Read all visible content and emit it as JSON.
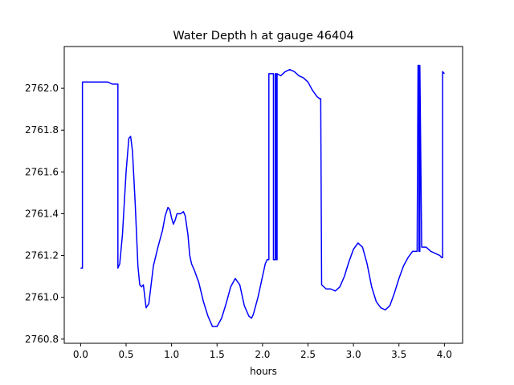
{
  "chart_data": {
    "type": "line",
    "title": "Water Depth h at gauge 46404",
    "xlabel": "hours",
    "ylabel": "",
    "xlim": [
      -0.18,
      4.2
    ],
    "ylim": [
      2760.78,
      2762.2
    ],
    "grid": false,
    "xticks": [
      0.0,
      0.5,
      1.0,
      1.5,
      2.0,
      2.5,
      3.0,
      3.5,
      4.0
    ],
    "xtick_labels": [
      "0.0",
      "0.5",
      "1.0",
      "1.5",
      "2.0",
      "2.5",
      "3.0",
      "3.5",
      "4.0"
    ],
    "yticks": [
      2760.8,
      2761.0,
      2761.2,
      2761.4,
      2761.6,
      2761.8,
      2762.0
    ],
    "ytick_labels": [
      "2760.8",
      "2761.0",
      "2761.2",
      "2761.4",
      "2761.6",
      "2761.8",
      "2762.0"
    ],
    "series": [
      {
        "color": "#0000ff",
        "x": [
          0.0,
          0.02,
          0.02,
          0.03,
          0.15,
          0.3,
          0.35,
          0.4,
          0.41,
          0.41,
          0.43,
          0.46,
          0.5,
          0.53,
          0.55,
          0.57,
          0.6,
          0.63,
          0.65,
          0.67,
          0.69,
          0.72,
          0.75,
          0.8,
          0.85,
          0.9,
          0.93,
          0.96,
          0.98,
          1.0,
          1.02,
          1.04,
          1.06,
          1.08,
          1.1,
          1.13,
          1.15,
          1.18,
          1.2,
          1.22,
          1.25,
          1.3,
          1.35,
          1.4,
          1.45,
          1.5,
          1.55,
          1.6,
          1.65,
          1.7,
          1.75,
          1.8,
          1.85,
          1.88,
          1.9,
          1.95,
          2.0,
          2.03,
          2.05,
          2.07,
          2.07,
          2.1,
          2.12,
          2.12,
          2.14,
          2.14,
          2.15,
          2.15,
          2.16,
          2.16,
          2.2,
          2.25,
          2.3,
          2.35,
          2.4,
          2.45,
          2.5,
          2.55,
          2.6,
          2.63,
          2.64,
          2.65,
          2.7,
          2.75,
          2.8,
          2.85,
          2.9,
          2.95,
          3.0,
          3.05,
          3.1,
          3.15,
          3.2,
          3.25,
          3.3,
          3.35,
          3.4,
          3.45,
          3.5,
          3.55,
          3.6,
          3.65,
          3.7,
          3.71,
          3.72,
          3.72,
          3.73,
          3.73,
          3.75,
          3.8,
          3.85,
          3.9,
          3.95,
          3.97,
          3.98,
          3.98,
          4.0
        ],
        "y": [
          2761.14,
          2761.14,
          2762.03,
          2762.03,
          2762.03,
          2762.03,
          2762.02,
          2762.02,
          2762.02,
          2761.14,
          2761.16,
          2761.3,
          2761.6,
          2761.76,
          2761.77,
          2761.7,
          2761.45,
          2761.15,
          2761.06,
          2761.05,
          2761.06,
          2760.95,
          2760.97,
          2761.15,
          2761.24,
          2761.32,
          2761.39,
          2761.43,
          2761.42,
          2761.38,
          2761.35,
          2761.37,
          2761.4,
          2761.4,
          2761.4,
          2761.41,
          2761.39,
          2761.3,
          2761.2,
          2761.16,
          2761.13,
          2761.07,
          2760.98,
          2760.91,
          2760.86,
          2760.86,
          2760.9,
          2760.97,
          2761.05,
          2761.09,
          2761.06,
          2760.96,
          2760.91,
          2760.9,
          2760.92,
          2761.0,
          2761.1,
          2761.16,
          2761.18,
          2761.18,
          2762.07,
          2762.07,
          2762.07,
          2761.18,
          2761.18,
          2762.07,
          2762.07,
          2761.18,
          2761.18,
          2762.07,
          2762.06,
          2762.08,
          2762.09,
          2762.08,
          2762.06,
          2762.05,
          2762.03,
          2761.99,
          2761.96,
          2761.95,
          2761.95,
          2761.06,
          2761.04,
          2761.04,
          2761.03,
          2761.05,
          2761.1,
          2761.17,
          2761.23,
          2761.26,
          2761.24,
          2761.16,
          2761.05,
          2760.98,
          2760.95,
          2760.94,
          2760.96,
          2761.02,
          2761.09,
          2761.15,
          2761.19,
          2761.22,
          2761.22,
          2762.11,
          2762.11,
          2761.22,
          2761.22,
          2762.11,
          2761.24,
          2761.24,
          2761.22,
          2761.21,
          2761.2,
          2761.19,
          2761.19,
          2762.08,
          2762.07
        ]
      }
    ]
  }
}
